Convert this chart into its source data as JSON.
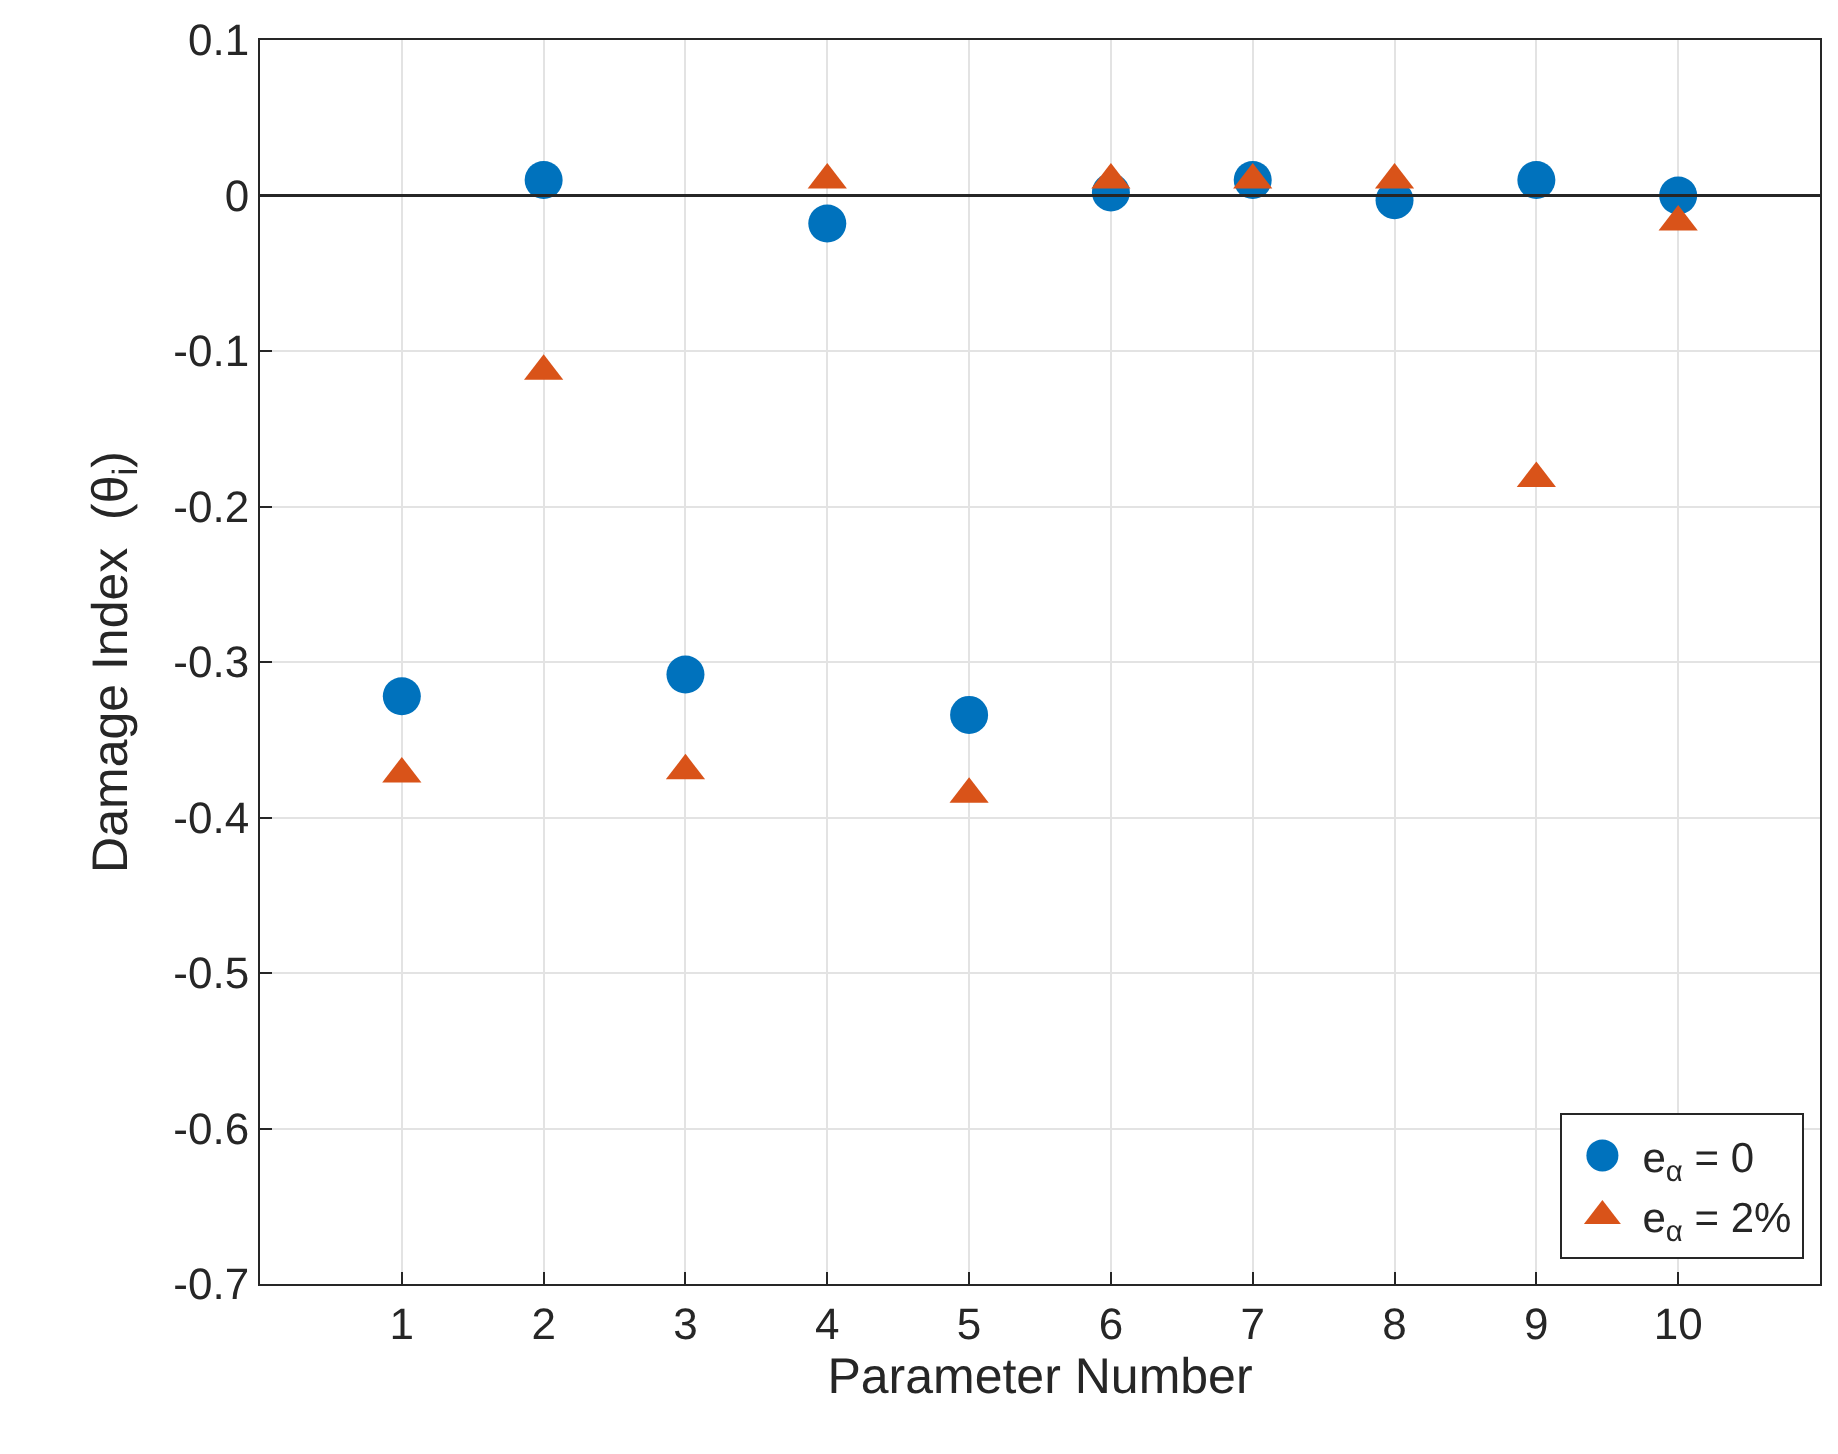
{
  "chart_data": {
    "type": "scatter",
    "xlabel": "Parameter Number",
    "ylabel": "Damage Index  (θ$_{i}$)",
    "x": [
      1,
      2,
      3,
      4,
      5,
      6,
      7,
      8,
      9,
      10
    ],
    "series": [
      {
        "name": "e$_{α}$ = 0",
        "color": "#0072bd",
        "marker": "circle",
        "values": [
          -0.322,
          0.01,
          -0.308,
          -0.018,
          -0.334,
          0.002,
          0.01,
          -0.003,
          0.01,
          0
        ]
      },
      {
        "name": "e$_{α}$ = 2%",
        "color": "#d95319",
        "marker": "triangle",
        "values": [
          -0.372,
          -0.113,
          -0.37,
          0.01,
          -0.385,
          0.01,
          0.01,
          0.01,
          -0.182,
          -0.017
        ]
      }
    ],
    "xlim": [
      0,
      11
    ],
    "xticks": [
      1,
      2,
      3,
      4,
      5,
      6,
      7,
      8,
      9,
      10
    ],
    "ylim": [
      -0.7,
      0.1
    ],
    "yticks": [
      -0.7,
      -0.6,
      -0.5,
      -0.4,
      -0.3,
      -0.2,
      -0.1,
      0,
      0.1
    ],
    "ref_lines": [
      {
        "axis": "y",
        "value": 0,
        "color": "#262626"
      }
    ],
    "grid": true,
    "legend": "bottom right"
  }
}
